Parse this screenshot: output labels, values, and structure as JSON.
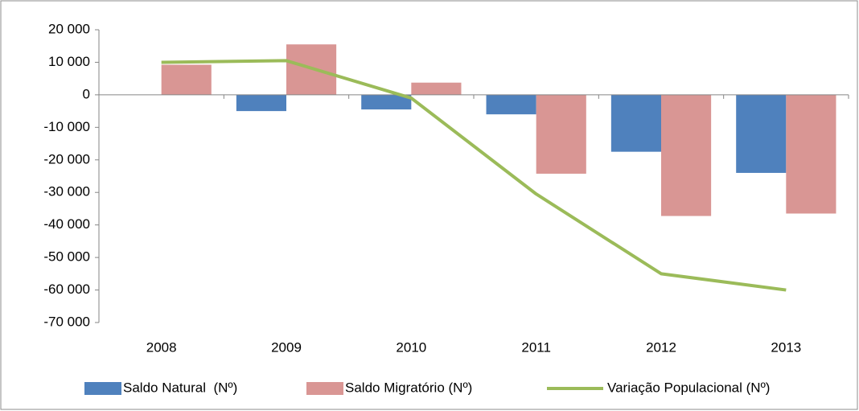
{
  "chart_data": {
    "type": "bar",
    "categories": [
      "2008",
      "2009",
      "2010",
      "2011",
      "2012",
      "2013"
    ],
    "series": [
      {
        "name": "Saldo Natural  (Nº)",
        "type": "bar",
        "color": "#4f81bd",
        "values": [
          0,
          -5000,
          -4500,
          -6000,
          -17500,
          -24000
        ]
      },
      {
        "name": "Saldo Migratório (Nº)",
        "type": "bar",
        "color": "#d99694",
        "values": [
          9250,
          15500,
          3750,
          -24250,
          -37250,
          -36500
        ]
      },
      {
        "name": "Variação Populacional (Nº)",
        "type": "line",
        "color": "#9bbb59",
        "values": [
          10000,
          10500,
          -1000,
          -30500,
          -55000,
          -60000
        ]
      }
    ],
    "ylim": [
      -70000,
      20000
    ],
    "yticks": [
      {
        "value": -70000,
        "label": "-70 000"
      },
      {
        "value": -60000,
        "label": "-60 000"
      },
      {
        "value": -50000,
        "label": "-50 000"
      },
      {
        "value": -40000,
        "label": "-40 000"
      },
      {
        "value": -30000,
        "label": "-30 000"
      },
      {
        "value": -20000,
        "label": "-20 000"
      },
      {
        "value": -10000,
        "label": "-10 000"
      },
      0,
      {
        "value": 10000,
        "label": "10 000"
      },
      {
        "value": 20000,
        "label": "20 000"
      }
    ],
    "grid": false,
    "legend": "bottom"
  }
}
